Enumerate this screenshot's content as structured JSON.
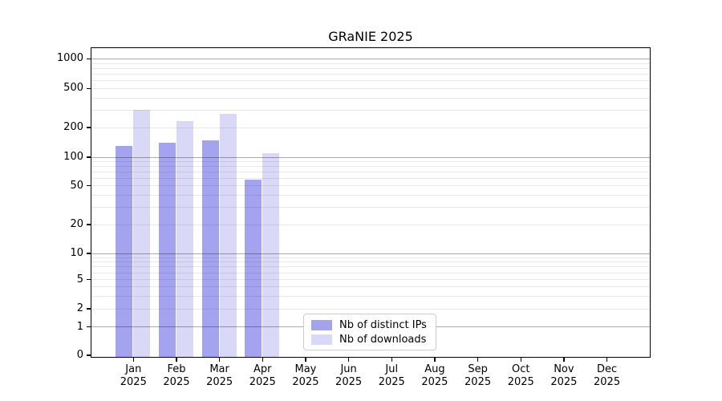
{
  "chart_data": {
    "type": "bar",
    "title": "GRaNIE 2025",
    "x_categories": [
      {
        "month": "Jan",
        "year": "2025"
      },
      {
        "month": "Feb",
        "year": "2025"
      },
      {
        "month": "Mar",
        "year": "2025"
      },
      {
        "month": "Apr",
        "year": "2025"
      },
      {
        "month": "May",
        "year": "2025"
      },
      {
        "month": "Jun",
        "year": "2025"
      },
      {
        "month": "Jul",
        "year": "2025"
      },
      {
        "month": "Aug",
        "year": "2025"
      },
      {
        "month": "Sep",
        "year": "2025"
      },
      {
        "month": "Oct",
        "year": "2025"
      },
      {
        "month": "Nov",
        "year": "2025"
      },
      {
        "month": "Dec",
        "year": "2025"
      }
    ],
    "series": [
      {
        "name": "Nb of distinct IPs",
        "color": "#a3a3f0",
        "values": [
          131,
          140,
          149,
          58,
          null,
          null,
          null,
          null,
          null,
          null,
          null,
          null
        ]
      },
      {
        "name": "Nb of downloads",
        "color": "#d9d9f7",
        "values": [
          306,
          235,
          280,
          111,
          null,
          null,
          null,
          null,
          null,
          null,
          null,
          null
        ]
      }
    ],
    "y_ticks": [
      0,
      1,
      2,
      5,
      10,
      20,
      50,
      100,
      200,
      500,
      1000
    ],
    "y_scale": "log above 1, compressed linear below 1",
    "ylim": [
      0,
      1280
    ],
    "grid": "horizontal, light minors + gray majors at decades, drawn over bars",
    "legend_position": "inside bottom, left of center"
  },
  "colors": {
    "bar_ips": "#a3a3f0",
    "bar_downloads": "#d9d9f7",
    "grid_major": "#ababab",
    "grid_minor": "#e9e9e9",
    "spine": "#000000",
    "legend_border": "#cccccc",
    "background": "#ffffff",
    "text": "#000000"
  }
}
